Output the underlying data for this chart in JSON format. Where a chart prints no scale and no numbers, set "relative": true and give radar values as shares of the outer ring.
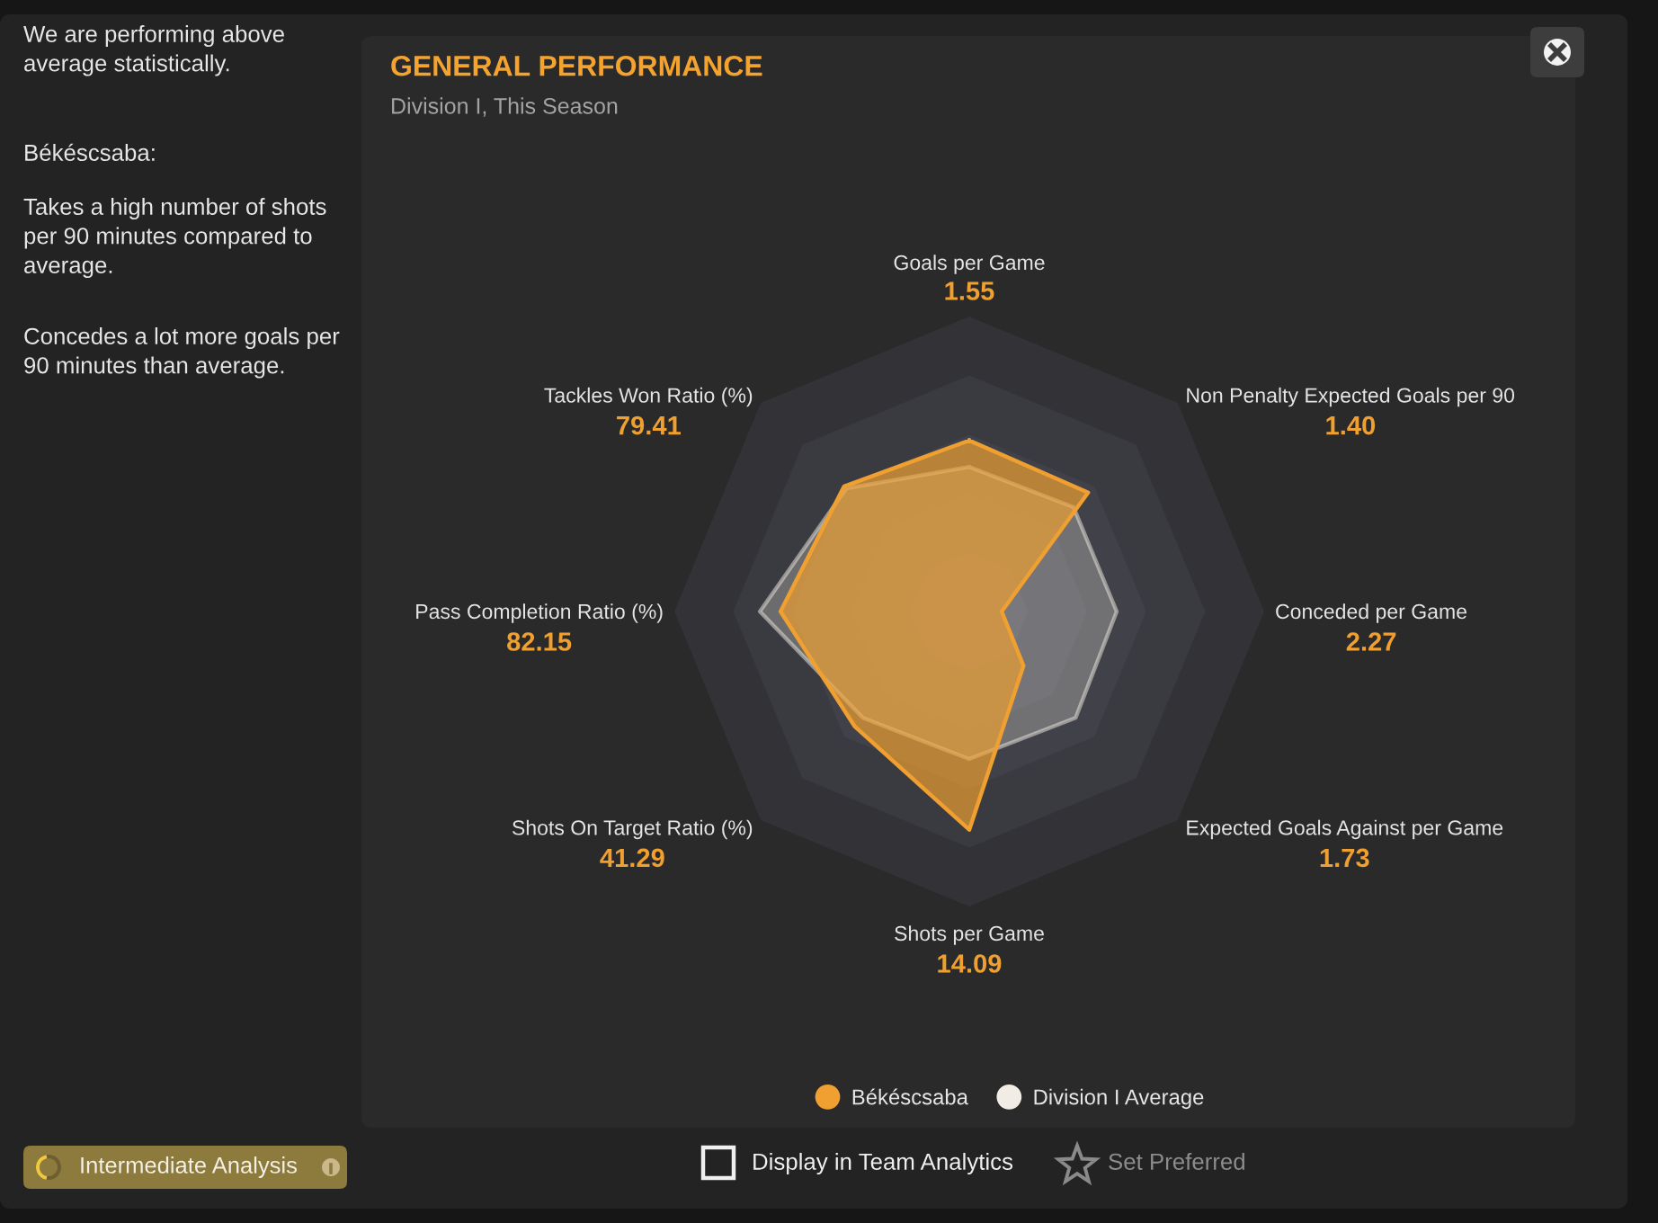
{
  "chart_data": {
    "type": "radar",
    "title": "GENERAL PERFORMANCE",
    "subtitle": "Division I, This Season",
    "categories": [
      "Goals per Game",
      "Non Penalty Expected Goals per 90",
      "Conceded per Game",
      "Expected Goals Against per Game",
      "Shots per Game",
      "Shots On Target Ratio (%)",
      "Pass Completion Ratio (%)",
      "Tackles Won Ratio (%)"
    ],
    "relative": true,
    "series": [
      {
        "name": "Békéscsaba",
        "color": "#f0a030",
        "values": [
          0.58,
          0.57,
          0.11,
          0.26,
          0.74,
          0.55,
          0.64,
          0.6
        ]
      },
      {
        "name": "Division I Average",
        "color": "#f2ede4",
        "values": [
          0.49,
          0.5,
          0.5,
          0.51,
          0.5,
          0.51,
          0.71,
          0.59
        ]
      }
    ],
    "grid": true,
    "legend": "bottom",
    "annotations": [
      "1.55",
      "1.40",
      "2.27",
      "1.73",
      "14.09",
      "41.29",
      "82.15",
      "79.41",
      "We are performing above\naverage statistically.",
      "Békéscsaba:",
      "Takes a high number of shots\nper 90 minutes compared to\naverage.",
      "Concedes a lot more goals per\n90 minutes than average.",
      "Intermediate Analysis",
      "Display in Team Analytics",
      "Set Preferred"
    ]
  }
}
